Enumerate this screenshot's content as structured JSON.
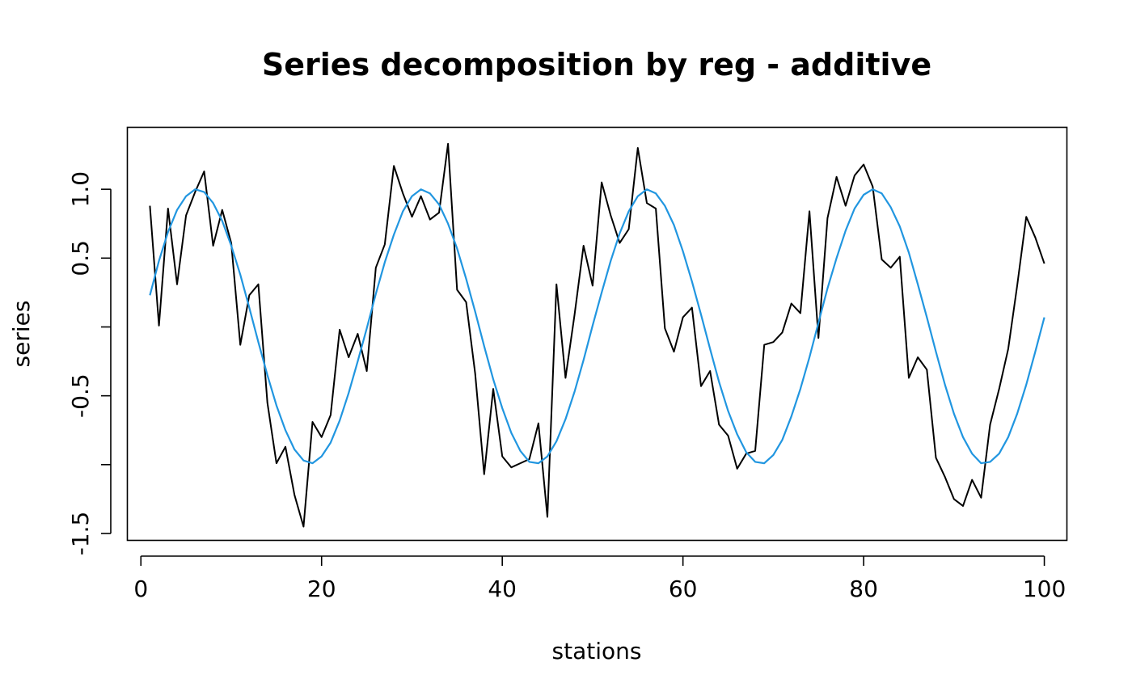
{
  "chart_data": {
    "type": "line",
    "title": "Series decomposition by reg - additive",
    "xlabel": "stations",
    "ylabel": "series",
    "xlim": [
      -1.5,
      102.5
    ],
    "ylim": [
      -1.55,
      1.45
    ],
    "x_ticks": [
      0,
      20,
      40,
      60,
      80,
      100
    ],
    "x_tick_labels": [
      "0",
      "20",
      "40",
      "60",
      "80",
      "100"
    ],
    "y_ticks": [
      -1.5,
      -1.0,
      -0.5,
      0.0,
      0.5,
      1.0
    ],
    "y_tick_labels": [
      "-1.5",
      "",
      "-0.5",
      "",
      "0.5",
      "1.0"
    ],
    "grid": false,
    "legend": "none",
    "series": [
      {
        "color": "#000000",
        "x": [
          1,
          2,
          3,
          4,
          5,
          6,
          7,
          8,
          9,
          10,
          11,
          12,
          13,
          14,
          15,
          16,
          17,
          18,
          19,
          20,
          21,
          22,
          23,
          24,
          25,
          26,
          27,
          28,
          29,
          30,
          31,
          32,
          33,
          34,
          35,
          36,
          37,
          38,
          39,
          40,
          41,
          42,
          43,
          44,
          45,
          46,
          47,
          48,
          49,
          50,
          51,
          52,
          53,
          54,
          55,
          56,
          57,
          58,
          59,
          60,
          61,
          62,
          63,
          64,
          65,
          66,
          67,
          68,
          69,
          70,
          71,
          72,
          73,
          74,
          75,
          76,
          77,
          78,
          79,
          80,
          81,
          82,
          83,
          84,
          85,
          86,
          87,
          88,
          89,
          90,
          91,
          92,
          93,
          94,
          95,
          96,
          97,
          98,
          99,
          100
        ],
        "values": [
          0.88,
          0.01,
          0.86,
          0.31,
          0.81,
          0.98,
          1.13,
          0.59,
          0.85,
          0.61,
          -0.13,
          0.23,
          0.31,
          -0.55,
          -0.99,
          -0.87,
          -1.22,
          -1.45,
          -0.69,
          -0.8,
          -0.64,
          -0.02,
          -0.22,
          -0.05,
          -0.32,
          0.43,
          0.6,
          1.17,
          0.97,
          0.8,
          0.95,
          0.78,
          0.83,
          1.33,
          0.27,
          0.18,
          -0.34,
          -1.07,
          -0.45,
          -0.94,
          -1.02,
          -0.99,
          -0.96,
          -0.7,
          -1.38,
          0.31,
          -0.37,
          0.09,
          0.59,
          0.3,
          1.05,
          0.81,
          0.61,
          0.71,
          1.3,
          0.9,
          0.86,
          -0.01,
          -0.18,
          0.07,
          0.14,
          -0.43,
          -0.32,
          -0.71,
          -0.79,
          -1.03,
          -0.92,
          -0.9,
          -0.13,
          -0.11,
          -0.04,
          0.17,
          0.1,
          0.84,
          -0.08,
          0.79,
          1.09,
          0.88,
          1.1,
          1.18,
          1.02,
          0.49,
          0.43,
          0.51,
          -0.37,
          -0.22,
          -0.31,
          -0.95,
          -1.09,
          -1.25,
          -1.3,
          -1.11,
          -1.24,
          -0.71,
          -0.45,
          -0.16,
          0.3,
          0.8,
          0.65,
          0.46
        ]
      },
      {
        "color": "#2196e0",
        "x": [
          1,
          2,
          3,
          4,
          5,
          6,
          7,
          8,
          9,
          10,
          11,
          12,
          13,
          14,
          15,
          16,
          17,
          18,
          19,
          20,
          21,
          22,
          23,
          24,
          25,
          26,
          27,
          28,
          29,
          30,
          31,
          32,
          33,
          34,
          35,
          36,
          37,
          38,
          39,
          40,
          41,
          42,
          43,
          44,
          45,
          46,
          47,
          48,
          49,
          50,
          51,
          52,
          53,
          54,
          55,
          56,
          57,
          58,
          59,
          60,
          61,
          62,
          63,
          64,
          65,
          66,
          67,
          68,
          69,
          70,
          71,
          72,
          73,
          74,
          75,
          76,
          77,
          78,
          79,
          80,
          81,
          82,
          83,
          84,
          85,
          86,
          87,
          88,
          89,
          90,
          91,
          92,
          93,
          94,
          95,
          96,
          97,
          98,
          99,
          100
        ],
        "values": [
          0.23,
          0.48,
          0.69,
          0.85,
          0.95,
          1.0,
          0.98,
          0.9,
          0.77,
          0.59,
          0.38,
          0.14,
          -0.11,
          -0.35,
          -0.57,
          -0.75,
          -0.89,
          -0.97,
          -0.99,
          -0.94,
          -0.84,
          -0.68,
          -0.48,
          -0.25,
          -0.01,
          0.24,
          0.47,
          0.67,
          0.84,
          0.95,
          1.0,
          0.97,
          0.89,
          0.75,
          0.57,
          0.35,
          0.11,
          -0.14,
          -0.38,
          -0.59,
          -0.77,
          -0.9,
          -0.98,
          -0.99,
          -0.94,
          -0.83,
          -0.67,
          -0.47,
          -0.24,
          0.01,
          0.25,
          0.48,
          0.68,
          0.84,
          0.95,
          1.0,
          0.97,
          0.88,
          0.74,
          0.55,
          0.33,
          0.09,
          -0.16,
          -0.4,
          -0.61,
          -0.78,
          -0.91,
          -0.98,
          -0.99,
          -0.93,
          -0.82,
          -0.65,
          -0.45,
          -0.22,
          0.03,
          0.28,
          0.5,
          0.7,
          0.86,
          0.96,
          1.0,
          0.97,
          0.87,
          0.73,
          0.54,
          0.31,
          0.07,
          -0.18,
          -0.42,
          -0.63,
          -0.8,
          -0.92,
          -0.99,
          -0.98,
          -0.92,
          -0.8,
          -0.63,
          -0.42,
          -0.18,
          0.07
        ]
      }
    ]
  }
}
